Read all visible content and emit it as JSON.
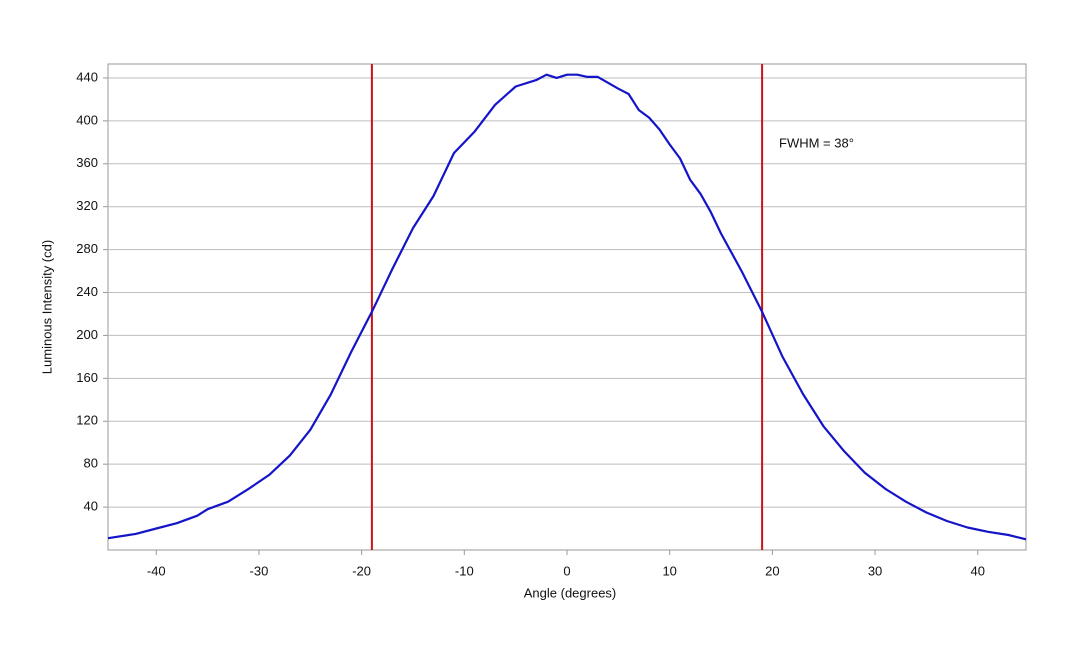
{
  "chart_data": {
    "type": "line",
    "x_label": "Angle (degrees)",
    "y_label": "Luminous Intensity (cd)",
    "annotation": "FWHM = 38°",
    "x": [
      -44.7,
      -42,
      -40,
      -38,
      -36,
      -35,
      -33,
      -31,
      -29,
      -27,
      -25,
      -23,
      -21,
      -19,
      -17,
      -15,
      -13,
      -11,
      -9,
      -7,
      -5,
      -3,
      -2,
      -1,
      0,
      1,
      2,
      3,
      5,
      6,
      7,
      8,
      9,
      10,
      11,
      12,
      13,
      14,
      15,
      17,
      19,
      21,
      23,
      25,
      27,
      29,
      31,
      33,
      35,
      37,
      39,
      41,
      43,
      44.7
    ],
    "series": [
      {
        "name": "Luminous Intensity",
        "color": "#1414c8",
        "values": [
          11,
          15,
          20,
          25,
          32,
          38,
          45,
          57,
          70,
          88,
          112,
          145,
          185,
          222,
          262,
          300,
          330,
          370,
          390,
          415,
          432,
          438,
          443,
          440,
          443,
          443,
          441,
          441,
          430,
          425,
          410,
          403,
          392,
          378,
          365,
          345,
          332,
          315,
          295,
          260,
          222,
          180,
          145,
          115,
          92,
          72,
          57,
          45,
          35,
          27,
          21,
          17,
          14,
          10
        ]
      }
    ],
    "vertical_lines": [
      -19,
      19
    ],
    "vertical_line_color": "#c81414",
    "xlim": [
      -44.7,
      44.7
    ],
    "ylim": [
      0,
      453
    ],
    "xticks": [
      -40,
      -30,
      -20,
      -10,
      0,
      10,
      20,
      30,
      40
    ],
    "yticks": [
      40,
      80,
      120,
      160,
      200,
      240,
      280,
      320,
      360,
      400,
      440
    ],
    "grid": true
  }
}
